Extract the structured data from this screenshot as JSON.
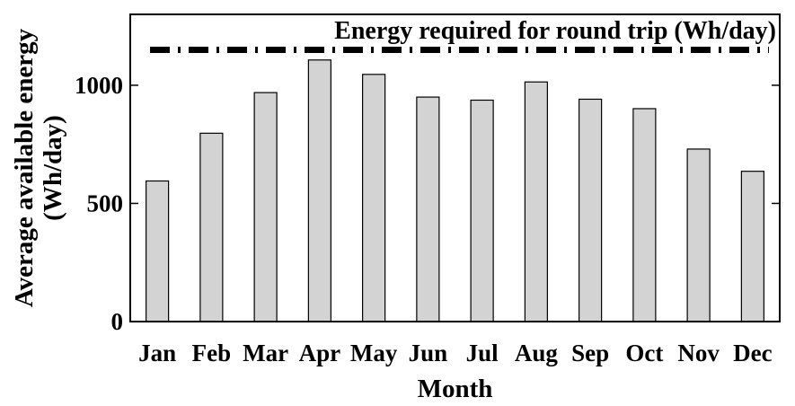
{
  "chart_data": {
    "type": "bar",
    "categories": [
      "Jan",
      "Feb",
      "Mar",
      "Apr",
      "May",
      "Jun",
      "Jul",
      "Aug",
      "Sep",
      "Oct",
      "Nov",
      "Dec"
    ],
    "values": [
      595,
      797,
      969,
      1107,
      1046,
      950,
      937,
      1014,
      941,
      901,
      730,
      636
    ],
    "xlabel": "Month",
    "ylabel_lines": [
      "Average available energy",
      "(Wh/day)"
    ],
    "ylim": [
      0,
      1300
    ],
    "yticks": [
      0,
      500,
      1000
    ],
    "bar_color": "#d3d3d3",
    "reference_line": {
      "value": 1150,
      "label": "Energy required for round trip (Wh/day)",
      "style": "dash-dot",
      "color": "#000000"
    },
    "grid": false,
    "legend_position": "top"
  }
}
